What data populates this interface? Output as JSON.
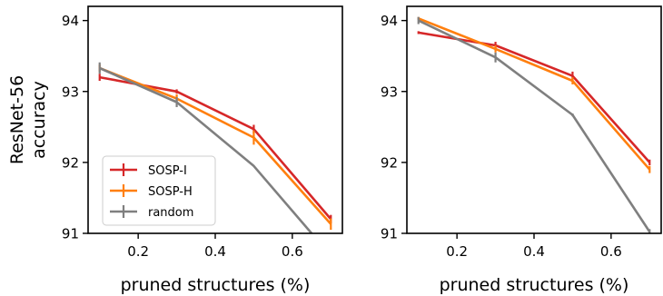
{
  "chart_data": [
    {
      "type": "line",
      "xlabel": "pruned structures (%)",
      "ylabel": "ResNet-56\naccuracy",
      "xlim": [
        0.07,
        0.73
      ],
      "ylim": [
        91,
        94.2
      ],
      "xticks": [
        "0.2",
        "0.4",
        "0.6"
      ],
      "yticks": [
        "91",
        "92",
        "93",
        "94"
      ],
      "legend": "lower-left",
      "series": [
        {
          "name": "SOSP-I",
          "color": "#d62728",
          "x": [
            0.1,
            0.3,
            0.5,
            0.7
          ],
          "y": [
            93.2,
            93.0,
            92.47,
            91.2
          ],
          "err": [
            0.05,
            0.03,
            0.06,
            0.06
          ]
        },
        {
          "name": "SOSP-H",
          "color": "#ff7f0e",
          "x": [
            0.1,
            0.3,
            0.5,
            0.7
          ],
          "y": [
            93.33,
            92.9,
            92.35,
            91.13
          ],
          "err": [
            0.05,
            0.06,
            0.1,
            0.08
          ]
        },
        {
          "name": "random",
          "color": "#7f7f7f",
          "x": [
            0.1,
            0.3,
            0.5,
            0.65
          ],
          "y": [
            93.33,
            92.85,
            91.95,
            91.0
          ],
          "err": [
            0.08,
            0.07,
            0.0,
            0.0
          ]
        }
      ]
    },
    {
      "type": "line",
      "xlabel": "pruned structures (%)",
      "ylabel": "",
      "xlim": [
        0.07,
        0.73
      ],
      "ylim": [
        91,
        94.2
      ],
      "xticks": [
        "0.2",
        "0.4",
        "0.6"
      ],
      "yticks": [
        "91",
        "92",
        "93",
        "94"
      ],
      "series": [
        {
          "name": "SOSP-I",
          "color": "#d62728",
          "x": [
            0.1,
            0.3,
            0.5,
            0.7
          ],
          "y": [
            93.83,
            93.65,
            93.22,
            92.0
          ],
          "err": [
            0.02,
            0.05,
            0.06,
            0.04
          ]
        },
        {
          "name": "SOSP-H",
          "color": "#ff7f0e",
          "x": [
            0.1,
            0.3,
            0.5,
            0.7
          ],
          "y": [
            94.03,
            93.6,
            93.15,
            91.9
          ],
          "err": [
            0.02,
            0.05,
            0.05,
            0.05
          ]
        },
        {
          "name": "random",
          "color": "#7f7f7f",
          "x": [
            0.1,
            0.3,
            0.5,
            0.7
          ],
          "y": [
            94.0,
            93.48,
            92.67,
            91.02
          ],
          "err": [
            0.05,
            0.07,
            0.02,
            0.04
          ]
        }
      ]
    }
  ]
}
